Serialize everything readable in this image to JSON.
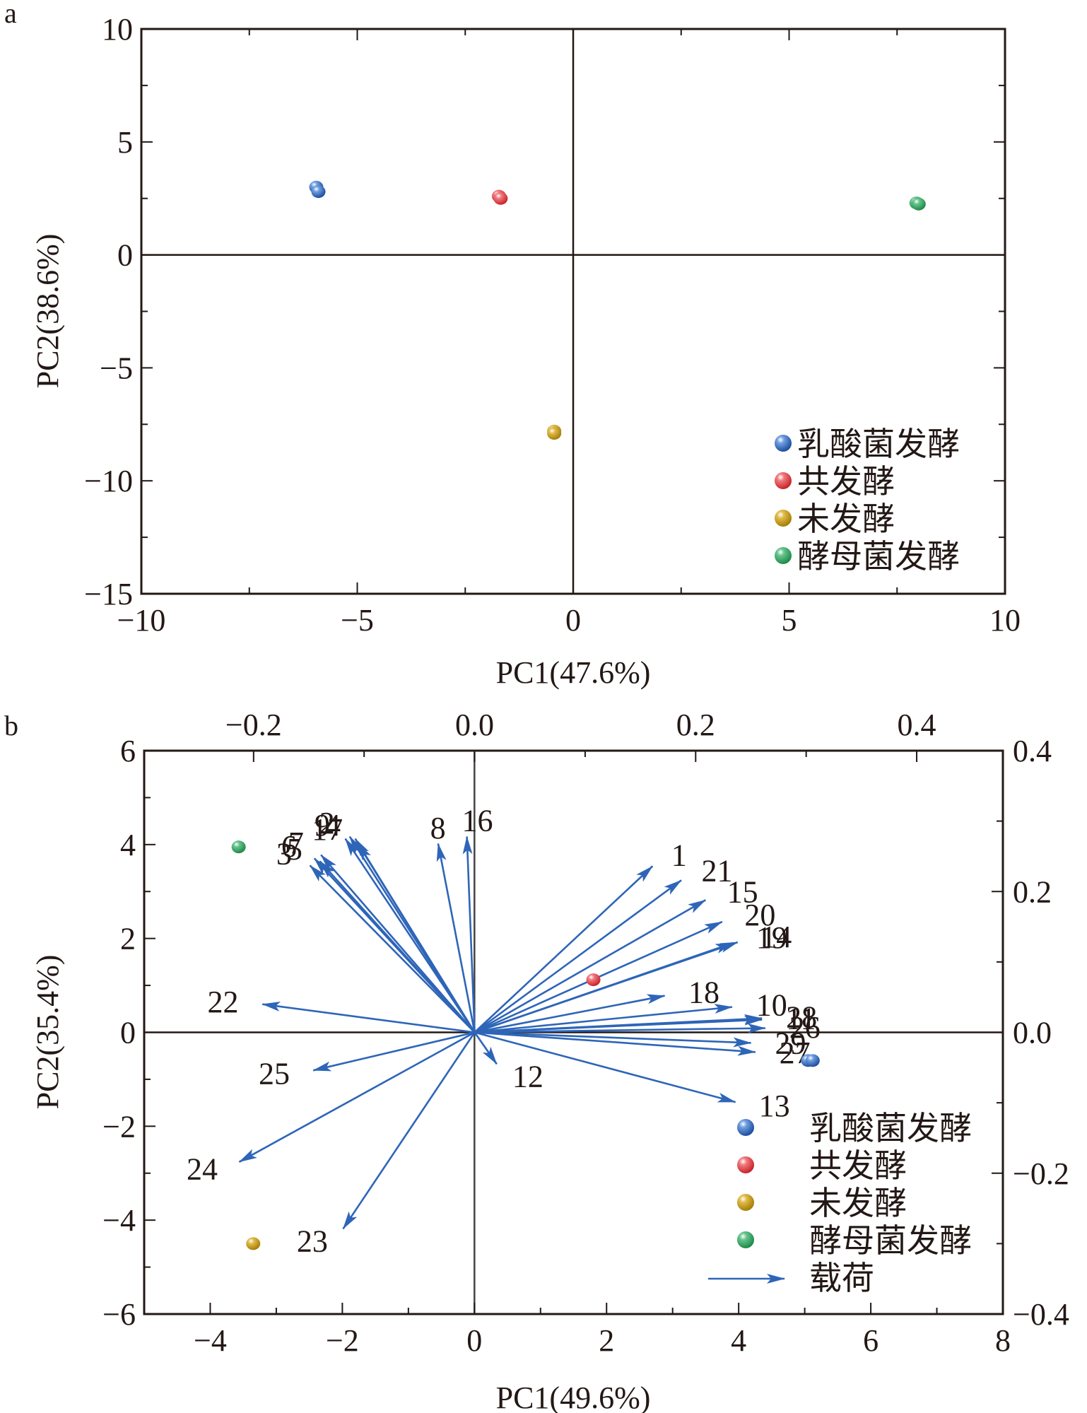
{
  "chart_data": [
    {
      "panel": "a",
      "type": "scatter",
      "title": "",
      "xlabel": "PC1(47.6%)",
      "ylabel": "PC2(38.6%)",
      "xlim": [
        -10,
        10
      ],
      "ylim": [
        -15,
        10
      ],
      "xticks": [
        -10,
        -5,
        0,
        5,
        10
      ],
      "yticks": [
        -15,
        -10,
        -5,
        0,
        5,
        10
      ],
      "xtick_labels": [
        "−10",
        "−5",
        "0",
        "5",
        "10"
      ],
      "ytick_labels": [
        "−15",
        "−10",
        "−5",
        "0",
        "5",
        "10"
      ],
      "grid": false,
      "zero_lines": true,
      "legend_position": "bottom-right",
      "series": [
        {
          "name": "乳酸菌发酵",
          "color": "#2e65b8",
          "points": [
            [
              -5.95,
              3.0
            ],
            [
              -5.9,
              2.8
            ]
          ]
        },
        {
          "name": "共发酵",
          "color": "#e23a3f",
          "points": [
            [
              -1.72,
              2.6
            ],
            [
              -1.68,
              2.5
            ]
          ]
        },
        {
          "name": "未发酵",
          "color": "#c49a12",
          "points": [
            [
              -0.44,
              -7.8
            ],
            [
              -0.44,
              -7.9
            ]
          ]
        },
        {
          "name": "酵母菌发酵",
          "color": "#2fa05e",
          "points": [
            [
              7.95,
              2.3
            ],
            [
              8.0,
              2.25
            ]
          ]
        }
      ]
    },
    {
      "panel": "b",
      "type": "scatter",
      "subtype": "biplot",
      "title": "",
      "xlabel": "PC1(49.6%)",
      "ylabel": "PC2(35.4%)",
      "xlim": [
        -5,
        8
      ],
      "ylim": [
        -6,
        6
      ],
      "xticks": [
        -4,
        -2,
        0,
        2,
        4,
        6,
        8
      ],
      "yticks": [
        -6,
        -4,
        -2,
        0,
        2,
        4,
        6
      ],
      "xtick_labels": [
        "−4",
        "−2",
        "0",
        "2",
        "4",
        "6",
        "8"
      ],
      "ytick_labels": [
        "−6",
        "−4",
        "−2",
        "0",
        "2",
        "4",
        "6"
      ],
      "top_xlim": [
        -0.299,
        0.478
      ],
      "top_xticks": [
        -0.2,
        0.0,
        0.2,
        0.4
      ],
      "top_xtick_labels": [
        "−0.2",
        "0.0",
        "0.2",
        "0.4"
      ],
      "right_ylim": [
        -0.4,
        0.4
      ],
      "right_yticks": [
        -0.4,
        -0.2,
        0.0,
        0.2,
        0.4
      ],
      "right_ytick_labels": [
        "−0.4",
        "−0.2",
        "0.0",
        "0.2",
        "0.4"
      ],
      "grid": false,
      "zero_lines": true,
      "legend_position": "bottom-right",
      "series": [
        {
          "name": "乳酸菌发酵",
          "color": "#2e65b8",
          "points": [
            [
              5.05,
              -0.6
            ],
            [
              5.12,
              -0.6
            ]
          ]
        },
        {
          "name": "共发酵",
          "color": "#e23a3f",
          "points": [
            [
              1.8,
              1.12
            ]
          ]
        },
        {
          "name": "未发酵",
          "color": "#c49a12",
          "points": [
            [
              -3.35,
              -4.5
            ]
          ]
        },
        {
          "name": "酵母菌发酵",
          "color": "#2fa05e",
          "points": [
            [
              -3.57,
              3.95
            ]
          ]
        }
      ],
      "loadings": {
        "name": "载荷",
        "color": "#2e65b8",
        "vectors": [
          {
            "label": "1",
            "x": 0.161,
            "y": 0.236
          },
          {
            "label": "2",
            "x": -0.113,
            "y": 0.278
          },
          {
            "label": "3",
            "x": -0.149,
            "y": 0.237
          },
          {
            "label": "4",
            "x": -0.108,
            "y": 0.275
          },
          {
            "label": "5",
            "x": -0.14,
            "y": 0.243
          },
          {
            "label": "6",
            "x": -0.145,
            "y": 0.247
          },
          {
            "label": "7",
            "x": -0.139,
            "y": 0.252
          },
          {
            "label": "8",
            "x": -0.033,
            "y": 0.268
          },
          {
            "label": "9",
            "x": -0.117,
            "y": 0.275
          },
          {
            "label": "10",
            "x": 0.233,
            "y": 0.036
          },
          {
            "label": "11",
            "x": 0.26,
            "y": 0.018
          },
          {
            "label": "12",
            "x": 0.02,
            "y": -0.045
          },
          {
            "label": "13",
            "x": 0.236,
            "y": -0.099
          },
          {
            "label": "14",
            "x": 0.238,
            "y": 0.128
          },
          {
            "label": "15",
            "x": 0.209,
            "y": 0.188
          },
          {
            "label": "16",
            "x": -0.007,
            "y": 0.278
          },
          {
            "label": "17",
            "x": -0.106,
            "y": 0.269
          },
          {
            "label": "18",
            "x": 0.172,
            "y": 0.052
          },
          {
            "label": "19",
            "x": 0.234,
            "y": 0.127
          },
          {
            "label": "20",
            "x": 0.224,
            "y": 0.157
          },
          {
            "label": "21",
            "x": 0.187,
            "y": 0.216
          },
          {
            "label": "22",
            "x": -0.192,
            "y": 0.04
          },
          {
            "label": "23",
            "x": -0.119,
            "y": -0.279
          },
          {
            "label": "24",
            "x": -0.213,
            "y": -0.184
          },
          {
            "label": "25",
            "x": -0.146,
            "y": -0.054
          },
          {
            "label": "26",
            "x": 0.263,
            "y": 0.006
          },
          {
            "label": "27",
            "x": 0.254,
            "y": -0.028
          },
          {
            "label": "28",
            "x": 0.26,
            "y": 0.02
          },
          {
            "label": "29",
            "x": 0.25,
            "y": -0.015
          }
        ]
      }
    }
  ],
  "panels": {
    "a": {
      "label": "a"
    },
    "b": {
      "label": "b"
    }
  }
}
